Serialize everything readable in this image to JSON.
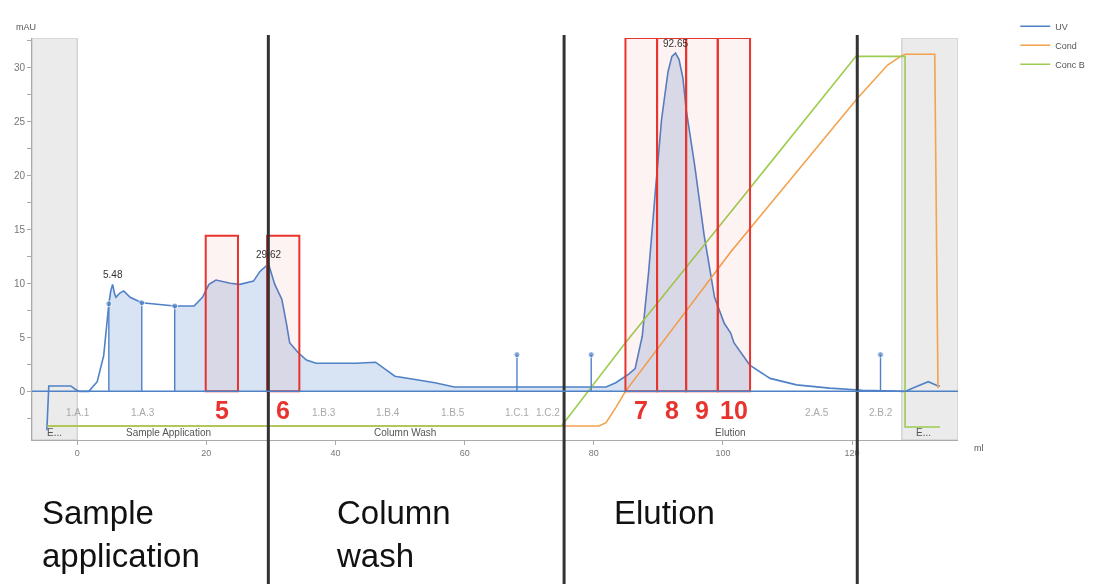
{
  "chart_data": {
    "type": "line",
    "xlabel": "ml",
    "ylabel": "mAU",
    "xlim": [
      -7,
      136.4
    ],
    "ylim": [
      -4.5,
      32.7
    ],
    "xticks": [
      0,
      20,
      40,
      60,
      80,
      100,
      120
    ],
    "yticks": [
      {
        "value": -2.5,
        "label": null
      },
      0,
      {
        "value": 2.5,
        "label": null
      },
      5,
      {
        "value": 7.5,
        "label": null
      },
      10,
      {
        "value": 12.5,
        "label": null
      },
      15,
      {
        "value": 17.5,
        "label": null
      },
      20,
      {
        "value": 22.5,
        "label": null
      },
      25,
      {
        "value": 27.5,
        "label": null
      },
      30,
      {
        "value": 32.5,
        "label": null
      }
    ],
    "legend": "top right",
    "series": [
      {
        "name": "UV",
        "color": "#4f81c7",
        "x": [
          -4.7,
          -4.4,
          -1.0,
          -0.3,
          0.3,
          1.8,
          3.1,
          4.1,
          4.9
        ],
        "values": [
          -3.6,
          0.5,
          0.5,
          0.2,
          0.0,
          0.0,
          0.9,
          3.3,
          8.1
        ]
      },
      {
        "type": "area",
        "color": "#4f81c7",
        "x": [
          4.9,
          5.2,
          5.48,
          5.8,
          6.0,
          6.6,
          7.2,
          8.2,
          10.0
        ],
        "values": [
          8.1,
          9.3,
          9.9,
          9.0,
          8.7,
          9.1,
          9.3,
          8.7,
          8.2
        ]
      },
      {
        "color": "#4f81c7",
        "x": [
          10.0,
          15.1
        ],
        "values": [
          8.2,
          7.9
        ]
      },
      {
        "type": "area",
        "color": "#4f81c7",
        "x": [
          15.1,
          18.1,
          19.4,
          20.4,
          21.5,
          23.7,
          25.2,
          27.3,
          28.3,
          29.62,
          30.6,
          31.7,
          32.4,
          32.9,
          34.2,
          35.5,
          37.0,
          43.1,
          46.2,
          49.2,
          53.3,
          55.4,
          58.4,
          63.5,
          81.9,
          83.4,
          85.4,
          86.4,
          87.5,
          88.5,
          89.5,
          90.5,
          91.5,
          92.1,
          92.65,
          93.2,
          93.8,
          94.3,
          95.6,
          97.1,
          98.7,
          100.2,
          101.2,
          101.7,
          104.2
        ],
        "values": [
          7.9,
          7.9,
          8.7,
          9.9,
          10.3,
          10.0,
          9.9,
          10.2,
          11.1,
          11.8,
          9.9,
          8.5,
          6.3,
          4.5,
          3.6,
          2.9,
          2.6,
          2.6,
          2.7,
          1.4,
          1.0,
          0.8,
          0.4,
          0.4,
          0.4,
          0.8,
          1.6,
          2.1,
          5.1,
          11.1,
          18.3,
          25.2,
          29.6,
          31.0,
          31.3,
          30.7,
          29.0,
          26.1,
          21.0,
          14.4,
          8.7,
          6.3,
          5.4,
          4.5,
          2.4
        ]
      },
      {
        "color": "#4f81c7",
        "x": [
          104.2,
          107.3,
          111.4,
          116.5,
          121.6,
          128.2,
          129.8,
          131.8,
          133.3,
          133.6
        ],
        "values": [
          2.4,
          1.2,
          0.6,
          0.3,
          0.1,
          0.0,
          0.4,
          0.9,
          0.5,
          0.5
        ]
      },
      {
        "name": "Cond",
        "color": "#f4a24e",
        "x": [
          -4.6,
          80.8,
          81.9,
          83.4,
          84.9,
          101.2,
          120.8,
          125.5,
          127.5,
          128.2,
          132.8,
          133.3
        ],
        "values": [
          -3.2,
          -3.2,
          -2.9,
          -1.5,
          0.0,
          12.9,
          27.1,
          30.2,
          31.0,
          31.2,
          31.2,
          0.3
        ]
      },
      {
        "name": "Conc B",
        "color": "#9ccc50",
        "x": [
          -4.6,
          75.0,
          84.9,
          104.3,
          120.6,
          128.2,
          128.2,
          133.6
        ],
        "values": [
          -3.2,
          -3.2,
          4.5,
          18.9,
          31.0,
          31.0,
          -3.3,
          -3.3
        ]
      },
      {
        "type": "lollipop",
        "color": "#4f81c7",
        "x": [
          4.9,
          10.0,
          15.1,
          68.1,
          79.6,
          124.4
        ],
        "values": [
          8.1,
          8.2,
          7.9,
          3.4,
          3.4,
          3.4
        ]
      }
    ],
    "ref_lines": [
      {
        "axis": "x",
        "value": 29.6,
        "color": "#333333"
      },
      {
        "axis": "x",
        "value": 75.4,
        "color": "#333333"
      },
      {
        "axis": "x",
        "value": 120.8,
        "color": "#333333"
      },
      {
        "axis": "y",
        "value": 0,
        "color": "#4f81c7"
      }
    ],
    "bands": [
      {
        "axis": "x",
        "from": -7,
        "to": 0,
        "color": "#ebebeb"
      },
      {
        "axis": "x",
        "from": 127.7,
        "to": 136.4,
        "color": "#ebebeb"
      },
      {
        "axis": "x",
        "from": 19.9,
        "to": 24.9,
        "label": "5",
        "color": "#e8342e"
      },
      {
        "axis": "x",
        "from": 29.4,
        "to": 34.4,
        "label": "6",
        "color": "#e8342e"
      },
      {
        "axis": "x",
        "from": 84.9,
        "to": 89.8,
        "label": "7",
        "color": "#e8342e"
      },
      {
        "axis": "x",
        "from": 89.8,
        "to": 94.3,
        "label": "8",
        "color": "#e8342e"
      },
      {
        "axis": "x",
        "from": 94.3,
        "to": 99.2,
        "label": "9",
        "color": "#e8342e"
      },
      {
        "axis": "x",
        "from": 99.2,
        "to": 104.2,
        "label": "10",
        "color": "#e8342e"
      }
    ],
    "annotations": [
      {
        "text": "5.48",
        "x": 5.48,
        "y": 9.9
      },
      {
        "text": "29.62",
        "x": 29.62,
        "y": 11.8
      },
      {
        "text": "92.65",
        "x": 92.65,
        "y": 31.3
      },
      "1.A.1",
      "1.A.3",
      "1.B.3",
      "1.B.4",
      "1.B.5",
      "1.C.1",
      "1.C.2",
      "2.A.5",
      "2.B.2",
      "E...",
      "Sample Application",
      "Column Wash",
      "Elution",
      "E...",
      "Sample application",
      "Column wash",
      "Elution"
    ]
  }
}
